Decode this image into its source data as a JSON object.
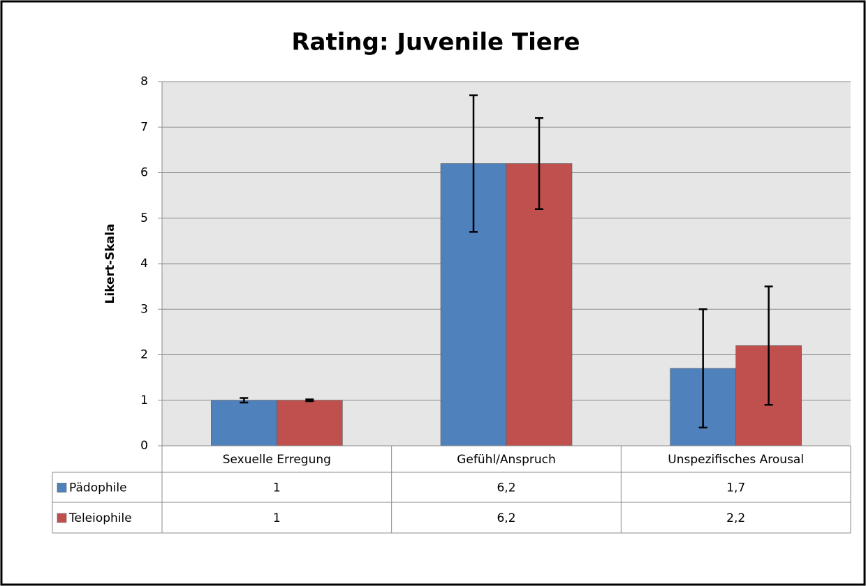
{
  "chart_data": {
    "type": "bar",
    "title": "Rating: Juvenile Tiere",
    "y_label": "Likert-Skala",
    "categories": [
      "Sexuelle Erregung",
      "Gefühl/Anspruch",
      "Unspezifisches Arousal"
    ],
    "series": [
      {
        "name": "Pädophile",
        "color": "#4f81bd",
        "values": [
          1,
          6.2,
          1.7
        ],
        "value_labels": [
          "1",
          "6,2",
          "1,7"
        ],
        "errors": [
          0.05,
          1.5,
          1.3
        ]
      },
      {
        "name": "Teleiophile",
        "color": "#c0504d",
        "values": [
          1,
          6.2,
          2.2
        ],
        "value_labels": [
          "1",
          "6,2",
          "2,2"
        ],
        "errors": [
          0.02,
          1.0,
          1.3
        ]
      }
    ],
    "ylim": [
      0,
      8
    ],
    "yticks": [
      0,
      1,
      2,
      3,
      4,
      5,
      6,
      7,
      8
    ],
    "grid": true
  }
}
